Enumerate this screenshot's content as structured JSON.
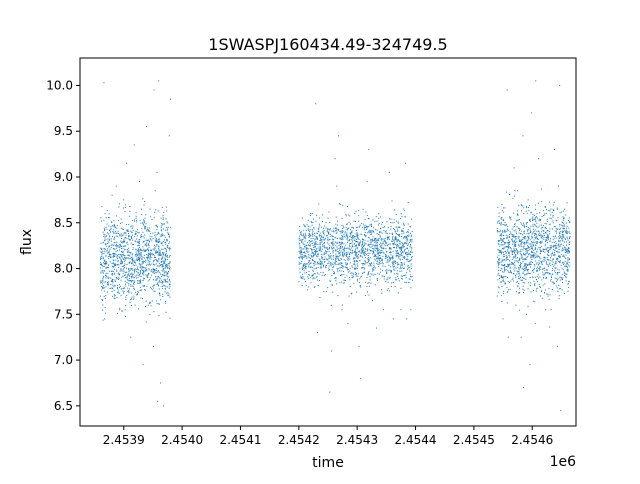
{
  "chart_data": {
    "type": "scatter",
    "title": "1SWASPJ160434.49-324749.5",
    "xlabel": "time",
    "ylabel": "flux",
    "x_offset_label": "1e6",
    "xlim": [
      2453825,
      2454675
    ],
    "ylim": [
      6.28,
      10.3
    ],
    "x_ticks": [
      2453900,
      2454000,
      2454100,
      2454200,
      2454300,
      2454400,
      2454500,
      2454600
    ],
    "x_tick_labels": [
      "2.4539",
      "2.4540",
      "2.4541",
      "2.4542",
      "2.4543",
      "2.4544",
      "2.4545",
      "2.4546"
    ],
    "y_ticks": [
      6.5,
      7.0,
      7.5,
      8.0,
      8.5,
      9.0,
      9.5,
      10.0
    ],
    "y_tick_labels": [
      "6.5",
      "7.0",
      "7.5",
      "8.0",
      "8.5",
      "9.0",
      "9.5",
      "10.0"
    ],
    "grid": false,
    "marker_color": "#1f77b4",
    "series": [
      {
        "points": [
          [
            2453865,
            7.95
          ],
          [
            2453866,
            8.35
          ],
          [
            2453867,
            7.45
          ],
          [
            2453868,
            8.6
          ],
          [
            2453866,
            10.03
          ],
          [
            2453876,
            8.15
          ],
          [
            2453880,
            8.8
          ],
          [
            2453884,
            7.7
          ],
          [
            2453887,
            8.9
          ],
          [
            2453890,
            8.25
          ],
          [
            2453893,
            7.55
          ],
          [
            2453897,
            8.5
          ],
          [
            2453900,
            8.75
          ],
          [
            2453903,
            7.9
          ],
          [
            2453905,
            9.15
          ],
          [
            2453908,
            8.35
          ],
          [
            2453912,
            7.25
          ],
          [
            2453915,
            8.1
          ],
          [
            2453918,
            9.35
          ],
          [
            2453921,
            8.55
          ],
          [
            2453924,
            7.75
          ],
          [
            2453927,
            8.95
          ],
          [
            2453930,
            8.2
          ],
          [
            2453933,
            6.95
          ],
          [
            2453936,
            8.45
          ],
          [
            2453939,
            9.55
          ],
          [
            2453942,
            7.6
          ],
          [
            2453945,
            8.65
          ],
          [
            2453948,
            8.05
          ],
          [
            2453951,
            7.15
          ],
          [
            2453954,
            8.85
          ],
          [
            2453957,
            9.05
          ],
          [
            2453960,
            8.3
          ],
          [
            2453963,
            6.75
          ],
          [
            2453966,
            7.85
          ],
          [
            2453952,
            9.95
          ],
          [
            2453960,
            10.05
          ],
          [
            2453958,
            6.55
          ],
          [
            2453968,
            6.5
          ],
          [
            2453978,
            9.45
          ],
          [
            2453980,
            9.85
          ],
          [
            2454218,
            8.25
          ],
          [
            2454220,
            7.9
          ],
          [
            2454223,
            8.6
          ],
          [
            2454226,
            8.05
          ],
          [
            2454229,
            9.8
          ],
          [
            2454232,
            7.3
          ],
          [
            2454241,
            8.4
          ],
          [
            2454244,
            8.1
          ],
          [
            2454247,
            7.75
          ],
          [
            2454250,
            8.55
          ],
          [
            2454253,
            6.65
          ],
          [
            2454256,
            7.1
          ],
          [
            2454259,
            8.35
          ],
          [
            2454262,
            9.2
          ],
          [
            2454265,
            8.9
          ],
          [
            2454268,
            9.45
          ],
          [
            2454271,
            8.7
          ],
          [
            2454274,
            7.55
          ],
          [
            2454278,
            8.15
          ],
          [
            2454281,
            8.45
          ],
          [
            2454284,
            7.4
          ],
          [
            2454288,
            8.0
          ],
          [
            2454292,
            8.3
          ],
          [
            2454296,
            8.6
          ],
          [
            2454300,
            8.05
          ],
          [
            2454303,
            7.15
          ],
          [
            2454306,
            6.8
          ],
          [
            2454309,
            8.45
          ],
          [
            2454312,
            8.25
          ],
          [
            2454314,
            7.85
          ],
          [
            2454317,
            8.95
          ],
          [
            2454320,
            9.3
          ],
          [
            2454323,
            8.4
          ],
          [
            2454326,
            7.65
          ],
          [
            2454330,
            8.15
          ],
          [
            2454333,
            7.35
          ],
          [
            2454337,
            8.6
          ],
          [
            2454341,
            8.2
          ],
          [
            2454345,
            7.55
          ],
          [
            2454349,
            8.25
          ],
          [
            2454353,
            7.85
          ],
          [
            2454355,
            9.05
          ],
          [
            2454358,
            8.15
          ],
          [
            2454360,
            8.5
          ],
          [
            2454362,
            7.45
          ],
          [
            2454366,
            7.9
          ],
          [
            2454370,
            8.05
          ],
          [
            2454373,
            8.35
          ],
          [
            2454375,
            7.55
          ],
          [
            2454378,
            8.1
          ],
          [
            2454380,
            8.65
          ],
          [
            2454382,
            7.85
          ],
          [
            2454383,
            9.15
          ],
          [
            2454385,
            7.45
          ],
          [
            2454389,
            7.85
          ],
          [
            2454391,
            8.25
          ],
          [
            2454392,
            7.55
          ],
          [
            2454393,
            8.0
          ],
          [
            2454540,
            7.7
          ],
          [
            2454542,
            8.05
          ],
          [
            2454548,
            8.7
          ],
          [
            2454550,
            7.45
          ],
          [
            2454554,
            8.4
          ],
          [
            2454557,
            9.95
          ],
          [
            2454559,
            7.25
          ],
          [
            2454562,
            8.55
          ],
          [
            2454566,
            8.1
          ],
          [
            2454569,
            9.1
          ],
          [
            2454572,
            7.6
          ],
          [
            2454575,
            8.85
          ],
          [
            2454578,
            8.3
          ],
          [
            2454581,
            7.25
          ],
          [
            2454584,
            9.45
          ],
          [
            2454587,
            8.0
          ],
          [
            2454590,
            7.5
          ],
          [
            2454593,
            8.75
          ],
          [
            2454596,
            6.95
          ],
          [
            2454599,
            9.7
          ],
          [
            2454602,
            8.2
          ],
          [
            2454605,
            7.4
          ],
          [
            2454608,
            8.6
          ],
          [
            2454611,
            9.2
          ],
          [
            2454614,
            7.7
          ],
          [
            2454617,
            8.45
          ],
          [
            2454620,
            8.1
          ],
          [
            2454623,
            7.55
          ],
          [
            2454627,
            8.35
          ],
          [
            2454632,
            8.65
          ],
          [
            2454636,
            7.85
          ],
          [
            2454638,
            9.3
          ],
          [
            2454640,
            8.25
          ],
          [
            2454643,
            7.15
          ],
          [
            2454645,
            8.9
          ],
          [
            2454647,
            10.0
          ],
          [
            2454649,
            6.45
          ],
          [
            2454652,
            8.5
          ],
          [
            2454655,
            7.95
          ],
          [
            2454658,
            8.4
          ],
          [
            2454662,
            8.2
          ],
          [
            2454585,
            6.7
          ],
          [
            2454606,
            10.05
          ]
        ]
      }
    ],
    "clusters": [
      {
        "x_start": 2453860,
        "x_end": 2453980,
        "mean": 8.1,
        "spread": 0.42,
        "count": 1300
      },
      {
        "x_start": 2454200,
        "x_end": 2454395,
        "mean": 8.2,
        "spread": 0.33,
        "count": 1700
      },
      {
        "x_start": 2454540,
        "x_end": 2454665,
        "mean": 8.2,
        "spread": 0.42,
        "count": 1300
      }
    ]
  }
}
